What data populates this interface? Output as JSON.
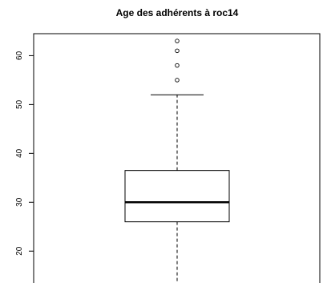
{
  "chart_data": {
    "type": "boxplot",
    "title": "Age des adhérents à roc14",
    "xlabel": "",
    "ylabel": "",
    "ylim": [
      12,
      64.5
    ],
    "yticks": [
      20,
      30,
      40,
      50,
      60
    ],
    "grid": false,
    "box": {
      "whisker_low": 13,
      "q1": 26,
      "median": 30,
      "q3": 36.5,
      "whisker_high": 52
    },
    "outliers": [
      55,
      58,
      61,
      63
    ]
  }
}
